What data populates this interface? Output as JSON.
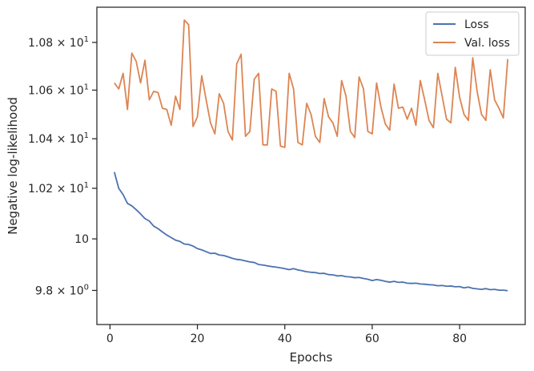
{
  "chart_data": {
    "type": "line",
    "xlabel": "Epochs",
    "ylabel": "Negative log-likelihood",
    "yscale": "log",
    "xlim": [
      -3,
      95
    ],
    "ylim": [
      9.67,
      10.95
    ],
    "x_ticks": [
      {
        "value": 0,
        "label": "0"
      },
      {
        "value": 20,
        "label": "20"
      },
      {
        "value": 40,
        "label": "40"
      },
      {
        "value": 60,
        "label": "60"
      },
      {
        "value": 80,
        "label": "80"
      }
    ],
    "y_ticks": [
      {
        "value": 9.8,
        "mant": "9.8",
        "exp": "0"
      },
      {
        "value": 10.0,
        "mant": "10",
        "exp": ""
      },
      {
        "value": 10.2,
        "mant": "1.02",
        "exp": "1"
      },
      {
        "value": 10.4,
        "mant": "1.04",
        "exp": "1"
      },
      {
        "value": 10.6,
        "mant": "1.06",
        "exp": "1"
      },
      {
        "value": 10.8,
        "mant": "1.08",
        "exp": "1"
      }
    ],
    "grid": false,
    "legend_position": "top-right",
    "series": [
      {
        "name": "Loss",
        "color": "#4c72b0",
        "x": [
          1,
          2,
          3,
          4,
          5,
          6,
          7,
          8,
          9,
          10,
          11,
          12,
          13,
          14,
          15,
          16,
          17,
          18,
          19,
          20,
          21,
          22,
          23,
          24,
          25,
          26,
          27,
          28,
          29,
          30,
          31,
          32,
          33,
          34,
          35,
          36,
          37,
          38,
          39,
          40,
          41,
          42,
          43,
          44,
          45,
          46,
          47,
          48,
          49,
          50,
          51,
          52,
          53,
          54,
          55,
          56,
          57,
          58,
          59,
          60,
          61,
          62,
          63,
          64,
          65,
          66,
          67,
          68,
          69,
          70,
          71,
          72,
          73,
          74,
          75,
          76,
          77,
          78,
          79,
          80,
          81,
          82,
          83,
          84,
          85,
          86,
          87,
          88,
          89,
          90,
          91
        ],
        "values": [
          10.265,
          10.2,
          10.175,
          10.14,
          10.13,
          10.115,
          10.098,
          10.08,
          10.07,
          10.05,
          10.04,
          10.027,
          10.015,
          10.005,
          9.995,
          9.99,
          9.98,
          9.978,
          9.972,
          9.962,
          9.957,
          9.95,
          9.943,
          9.944,
          9.937,
          9.935,
          9.93,
          9.924,
          9.92,
          9.918,
          9.914,
          9.91,
          9.908,
          9.9,
          9.898,
          9.895,
          9.892,
          9.89,
          9.887,
          9.884,
          9.88,
          9.884,
          9.879,
          9.876,
          9.872,
          9.87,
          9.869,
          9.865,
          9.866,
          9.861,
          9.86,
          9.856,
          9.857,
          9.853,
          9.852,
          9.849,
          9.85,
          9.846,
          9.843,
          9.838,
          9.842,
          9.839,
          9.835,
          9.832,
          9.835,
          9.831,
          9.832,
          9.828,
          9.827,
          9.828,
          9.825,
          9.824,
          9.822,
          9.821,
          9.818,
          9.819,
          9.816,
          9.817,
          9.814,
          9.815,
          9.81,
          9.813,
          9.808,
          9.806,
          9.804,
          9.807,
          9.803,
          9.804,
          9.801,
          9.801,
          9.799
        ]
      },
      {
        "name": "Val. loss",
        "color": "#dd8452",
        "x": [
          1,
          2,
          3,
          4,
          5,
          6,
          7,
          8,
          9,
          10,
          11,
          12,
          13,
          14,
          15,
          16,
          17,
          18,
          19,
          20,
          21,
          22,
          23,
          24,
          25,
          26,
          27,
          28,
          29,
          30,
          31,
          32,
          33,
          34,
          35,
          36,
          37,
          38,
          39,
          40,
          41,
          42,
          43,
          44,
          45,
          46,
          47,
          48,
          49,
          50,
          51,
          52,
          53,
          54,
          55,
          56,
          57,
          58,
          59,
          60,
          61,
          62,
          63,
          64,
          65,
          66,
          67,
          68,
          69,
          70,
          71,
          72,
          73,
          74,
          75,
          76,
          77,
          78,
          79,
          80,
          81,
          82,
          83,
          84,
          85,
          86,
          87,
          88,
          89,
          90,
          91
        ],
        "values": [
          10.63,
          10.605,
          10.67,
          10.52,
          10.755,
          10.72,
          10.63,
          10.725,
          10.56,
          10.595,
          10.59,
          10.525,
          10.52,
          10.455,
          10.575,
          10.52,
          10.895,
          10.875,
          10.45,
          10.49,
          10.66,
          10.56,
          10.465,
          10.42,
          10.585,
          10.545,
          10.43,
          10.395,
          10.71,
          10.75,
          10.41,
          10.43,
          10.645,
          10.67,
          10.375,
          10.375,
          10.605,
          10.595,
          10.37,
          10.365,
          10.67,
          10.605,
          10.385,
          10.375,
          10.545,
          10.5,
          10.41,
          10.385,
          10.565,
          10.49,
          10.465,
          10.41,
          10.64,
          10.575,
          10.43,
          10.405,
          10.655,
          10.605,
          10.43,
          10.42,
          10.63,
          10.53,
          10.46,
          10.435,
          10.625,
          10.525,
          10.53,
          10.48,
          10.525,
          10.455,
          10.64,
          10.56,
          10.475,
          10.445,
          10.67,
          10.575,
          10.48,
          10.465,
          10.695,
          10.57,
          10.5,
          10.475,
          10.735,
          10.595,
          10.5,
          10.475,
          10.685,
          10.56,
          10.525,
          10.485,
          10.73
        ]
      }
    ]
  }
}
